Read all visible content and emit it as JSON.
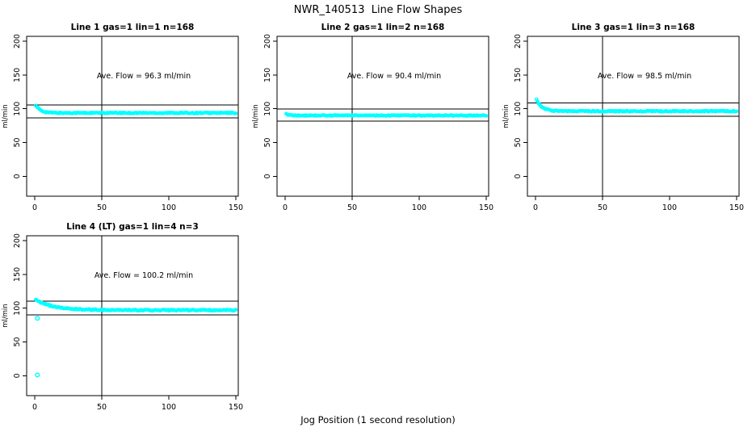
{
  "figure": {
    "title": "NWR_140513  Line Flow Shapes",
    "xlabel": "Jog Position (1 second resolution)",
    "background": "#ffffff",
    "point_color": "#00ffff",
    "axis_color": "#000000"
  },
  "chart_data": [
    {
      "type": "scatter",
      "title": "Line 1 gas=1 lin=1 n=168",
      "annotation": "Ave. Flow =  96.3  ml/min",
      "ave_flow_ml_min": 96.3,
      "n": 168,
      "ylabel": "ml/min",
      "x_ticks": [
        0,
        50,
        100,
        150
      ],
      "y_ticks": [
        0,
        50,
        100,
        150,
        200
      ],
      "xlim": [
        -6,
        152
      ],
      "ylim": [
        -29.5,
        207.5
      ],
      "vline_x": 50,
      "hlines": [
        105.9,
        86.7
      ],
      "series": {
        "x_start": 0.7,
        "x_end": 150.5,
        "step": 0.75,
        "y_start": 105.5,
        "y_plateau": 93.8,
        "decay_tau": 3.5,
        "jitter": 0.8
      },
      "outliers": []
    },
    {
      "type": "scatter",
      "title": "Line 2 gas=1 lin=2 n=168",
      "annotation": "Ave. Flow =  90.4  ml/min",
      "ave_flow_ml_min": 90.4,
      "n": 168,
      "ylabel": "ml/min",
      "x_ticks": [
        0,
        50,
        100,
        150
      ],
      "y_ticks": [
        0,
        50,
        100,
        150,
        200
      ],
      "xlim": [
        -6,
        152
      ],
      "ylim": [
        -29.5,
        207.5
      ],
      "vline_x": 50,
      "hlines": [
        99.4,
        81.4
      ],
      "series": {
        "x_start": 0.7,
        "x_end": 150.5,
        "step": 0.75,
        "y_start": 92.5,
        "y_plateau": 90.0,
        "decay_tau": 2.5,
        "jitter": 0.7
      },
      "outliers": []
    },
    {
      "type": "scatter",
      "title": "Line 3 gas=1 lin=3 n=168",
      "annotation": "Ave. Flow =  98.5  ml/min",
      "ave_flow_ml_min": 98.5,
      "n": 168,
      "ylabel": "ml/min",
      "x_ticks": [
        0,
        50,
        100,
        150
      ],
      "y_ticks": [
        0,
        50,
        100,
        150,
        200
      ],
      "xlim": [
        -6,
        152
      ],
      "ylim": [
        -29.5,
        207.5
      ],
      "vline_x": 50,
      "hlines": [
        108.4,
        88.7
      ],
      "series": {
        "x_start": 0.7,
        "x_end": 150.5,
        "step": 0.75,
        "y_start": 114.0,
        "y_plateau": 96.4,
        "decay_tau": 4.0,
        "jitter": 0.8
      },
      "outliers": []
    },
    {
      "type": "scatter",
      "title": "Line 4 (LT) gas=1 lin=4 n=3",
      "annotation": "Ave. Flow =  100.2  ml/min",
      "ave_flow_ml_min": 100.2,
      "n": 3,
      "ylabel": "ml/min",
      "x_ticks": [
        0,
        50,
        100,
        150
      ],
      "y_ticks": [
        0,
        50,
        100,
        150,
        200
      ],
      "xlim": [
        -6,
        152
      ],
      "ylim": [
        -29.5,
        207.5
      ],
      "vline_x": 50,
      "hlines": [
        110.2,
        90.2
      ],
      "series": {
        "x_start": 0.7,
        "x_end": 150.5,
        "step": 0.75,
        "y_start": 112.0,
        "y_plateau": 97.0,
        "decay_tau": 14.0,
        "jitter": 0.9
      },
      "outliers": [
        [
          2,
          85
        ],
        [
          2,
          1
        ]
      ]
    }
  ]
}
